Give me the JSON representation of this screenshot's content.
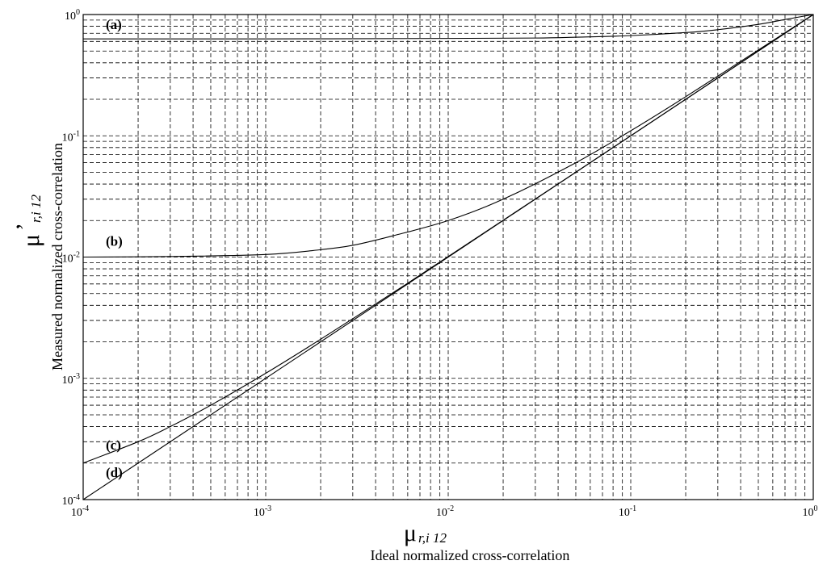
{
  "chart_data": {
    "type": "line",
    "xscale": "log",
    "yscale": "log",
    "xlim": [
      0.0001,
      1
    ],
    "ylim": [
      0.0001,
      1
    ],
    "grid": true,
    "xlabel_symbol": "μ",
    "xlabel_subscript": "r,i 12",
    "xlabel": "Ideal  normalized cross-correlation",
    "ylabel_symbol": "μ",
    "ylabel_prime": "’",
    "ylabel_subscript": "r,i 12",
    "ylabel": "Measured normalized cross-correlation",
    "x_ticks": [
      {
        "base": "10",
        "exp": "-4",
        "value": 0.0001
      },
      {
        "base": "10",
        "exp": "-3",
        "value": 0.001
      },
      {
        "base": "10",
        "exp": "-2",
        "value": 0.01
      },
      {
        "base": "10",
        "exp": "-1",
        "value": 0.1
      },
      {
        "base": "10",
        "exp": "0",
        "value": 1
      }
    ],
    "y_ticks": [
      {
        "base": "10",
        "exp": "-4",
        "value": 0.0001
      },
      {
        "base": "10",
        "exp": "-3",
        "value": 0.001
      },
      {
        "base": "10",
        "exp": "-2",
        "value": 0.01
      },
      {
        "base": "10",
        "exp": "-1",
        "value": 0.1
      },
      {
        "base": "10",
        "exp": "0",
        "value": 1
      }
    ],
    "series": [
      {
        "label": "(a)",
        "x": [
          0.0001,
          0.001,
          0.01,
          0.03,
          0.05,
          0.1,
          0.2,
          0.3,
          0.5,
          0.7,
          1
        ],
        "y": [
          0.63,
          0.63,
          0.635,
          0.64,
          0.65,
          0.67,
          0.71,
          0.75,
          0.83,
          0.91,
          1
        ]
      },
      {
        "label": "(b)",
        "x": [
          0.0001,
          0.0003,
          0.001,
          0.002,
          0.003,
          0.005,
          0.01,
          0.02,
          0.05,
          0.1,
          0.2,
          0.5,
          1
        ],
        "y": [
          0.01,
          0.0101,
          0.0105,
          0.0115,
          0.0125,
          0.015,
          0.02,
          0.03,
          0.06,
          0.11,
          0.21,
          0.51,
          1
        ]
      },
      {
        "label": "(c)",
        "x": [
          0.0001,
          0.0002,
          0.0003,
          0.0005,
          0.001,
          0.002,
          0.005,
          0.01,
          0.1,
          1
        ],
        "y": [
          0.0002,
          0.0003,
          0.0004,
          0.0006,
          0.0011,
          0.0021,
          0.0051,
          0.0101,
          0.1,
          1
        ]
      },
      {
        "label": "(d)",
        "x": [
          0.0001,
          1
        ],
        "y": [
          0.0001,
          1
        ]
      }
    ]
  }
}
